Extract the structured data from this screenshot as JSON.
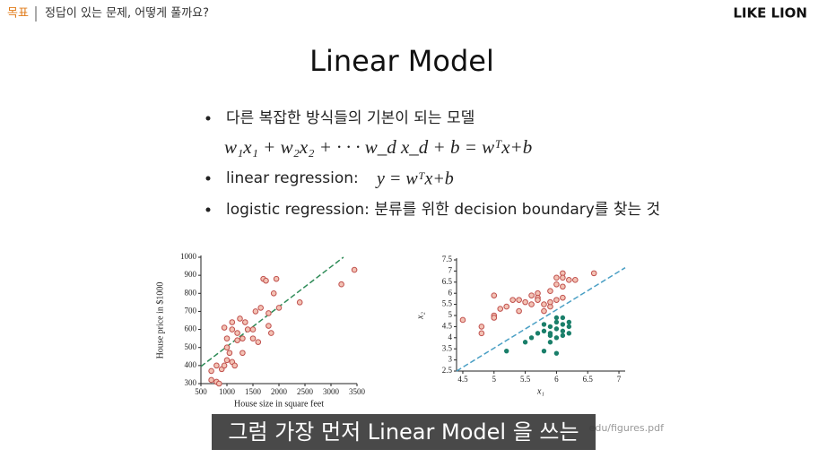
{
  "header": {
    "section": "목표",
    "title": "정답이 있는 문제, 어떻게 풀까요?",
    "brand": "LIKE LION"
  },
  "slide": {
    "title": "Linear Model",
    "bullets": [
      "다른 복잡한 방식들의 기본이 되는 모델",
      "linear regression:",
      "logistic regression: 분류를 위한 decision boundary를 찾는 것"
    ],
    "formula": "w₁x₁ + w₂x₂ + · · · w_d x_d + b  =  wᵀx+b",
    "regression_formula": "y = wᵀx+b",
    "source": "edu/figures.pdf",
    "caption": "그럼 가장 먼저 Linear Model 을 쓰는"
  },
  "chart_data": [
    {
      "type": "scatter",
      "x_label": "House size in square feet",
      "y_label": "House price in $1000",
      "xlim": [
        500,
        3500
      ],
      "ylim": [
        300,
        1000
      ],
      "xticks": [
        500,
        1000,
        1500,
        2000,
        2500,
        3000,
        3500
      ],
      "yticks": [
        300,
        400,
        500,
        600,
        700,
        800,
        900,
        1000
      ],
      "series": [
        {
          "color": "#c0504d",
          "x": [
            700,
            800,
            850,
            900,
            950,
            1000,
            1000,
            1050,
            1100,
            1100,
            1150,
            1200,
            1200,
            1250,
            1300,
            1350,
            1400,
            1500,
            1500,
            1550,
            1600,
            1650,
            1700,
            1750,
            1800,
            1800,
            1850,
            1900,
            1950,
            2000,
            2400,
            3200,
            3450,
            800,
            950,
            700,
            1300,
            1100,
            1000
          ],
          "y": [
            320,
            310,
            300,
            380,
            400,
            430,
            500,
            470,
            420,
            600,
            400,
            580,
            540,
            660,
            550,
            640,
            600,
            600,
            550,
            700,
            530,
            720,
            880,
            870,
            690,
            620,
            580,
            800,
            880,
            720,
            750,
            850,
            930,
            400,
            610,
            370,
            470,
            640,
            550
          ]
        }
      ],
      "fit_line": {
        "color": "#2e8b57",
        "x": [
          500,
          3240
        ],
        "y": [
          395,
          1000
        ]
      }
    },
    {
      "type": "scatter",
      "x_label": "x₁",
      "y_label": "x₂",
      "xlim": [
        4.4,
        7.1
      ],
      "ylim": [
        2.5,
        7.5
      ],
      "xticks": [
        4.5,
        5,
        5.5,
        6,
        6.5,
        7
      ],
      "yticks": [
        2.5,
        3,
        3.5,
        4,
        4.5,
        5,
        5.5,
        6,
        6.5,
        7,
        7.5
      ],
      "series": [
        {
          "color": "#c0504d",
          "x": [
            4.5,
            4.8,
            4.8,
            5,
            5,
            5,
            5.1,
            5.2,
            5.3,
            5.4,
            5.4,
            5.5,
            5.6,
            5.6,
            5.7,
            5.7,
            5.8,
            5.8,
            5.9,
            5.9,
            6,
            6,
            6,
            6.1,
            6.1,
            6.1,
            6.1,
            6.2,
            6.3,
            6.6,
            5.9,
            5.7
          ],
          "y": [
            4.8,
            4.5,
            4.2,
            5.9,
            5,
            4.9,
            5.3,
            5.4,
            5.7,
            5.7,
            5.2,
            5.6,
            5.9,
            5.5,
            6,
            5.8,
            5.2,
            5.5,
            6.1,
            5.4,
            6.4,
            6.7,
            5.7,
            6.9,
            6.7,
            6.3,
            5.8,
            6.6,
            6.6,
            6.9,
            5.6,
            5.7
          ]
        },
        {
          "color": "#1a7f6a",
          "x": [
            5.2,
            5.5,
            5.6,
            5.7,
            5.8,
            5.8,
            5.9,
            5.9,
            5.9,
            6,
            6,
            6,
            6.1,
            6.1,
            6.1,
            6.2,
            6.2,
            6.2,
            5.8,
            6,
            6,
            5.9,
            6.1
          ],
          "y": [
            3.4,
            3.8,
            4,
            4.2,
            4.3,
            3.4,
            3.8,
            4.5,
            4.2,
            4.4,
            4.7,
            4,
            4.1,
            4.3,
            4.6,
            4.2,
            4.5,
            4.7,
            4.6,
            3.3,
            4.9,
            4.1,
            4.9
          ]
        }
      ],
      "fit_line": {
        "color": "#4a9fc4",
        "x": [
          4.4,
          7.1
        ],
        "y": [
          2.5,
          7.15
        ]
      }
    }
  ]
}
